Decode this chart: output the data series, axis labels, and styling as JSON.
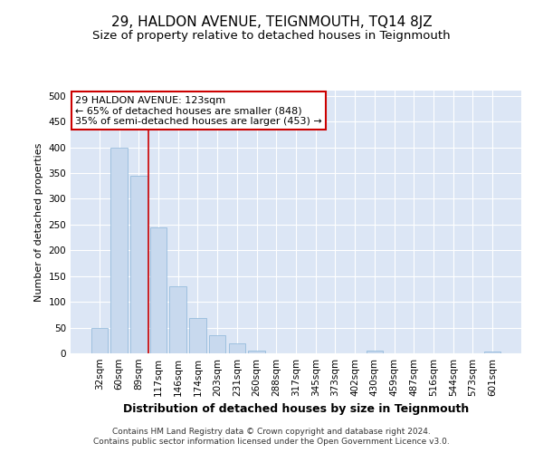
{
  "title": "29, HALDON AVENUE, TEIGNMOUTH, TQ14 8JZ",
  "subtitle": "Size of property relative to detached houses in Teignmouth",
  "xlabel": "Distribution of detached houses by size in Teignmouth",
  "ylabel": "Number of detached properties",
  "categories": [
    "32sqm",
    "60sqm",
    "89sqm",
    "117sqm",
    "146sqm",
    "174sqm",
    "203sqm",
    "231sqm",
    "260sqm",
    "288sqm",
    "317sqm",
    "345sqm",
    "373sqm",
    "402sqm",
    "430sqm",
    "459sqm",
    "487sqm",
    "516sqm",
    "544sqm",
    "573sqm",
    "601sqm"
  ],
  "values": [
    50,
    400,
    345,
    245,
    130,
    68,
    35,
    20,
    6,
    0,
    0,
    0,
    0,
    0,
    5,
    0,
    0,
    0,
    0,
    0,
    3
  ],
  "bar_color": "#c8d9ee",
  "bar_edge_color": "#8ab4d8",
  "vline_color": "#cc0000",
  "vline_x_index": 3,
  "annotation_text": "29 HALDON AVENUE: 123sqm\n← 65% of detached houses are smaller (848)\n35% of semi-detached houses are larger (453) →",
  "annotation_box_facecolor": "white",
  "annotation_box_edgecolor": "#cc0000",
  "ylim": [
    0,
    510
  ],
  "yticks": [
    0,
    50,
    100,
    150,
    200,
    250,
    300,
    350,
    400,
    450,
    500
  ],
  "plot_bg_color": "#dce6f5",
  "grid_color": "white",
  "footer_line1": "Contains HM Land Registry data © Crown copyright and database right 2024.",
  "footer_line2": "Contains public sector information licensed under the Open Government Licence v3.0.",
  "title_fontsize": 11,
  "subtitle_fontsize": 9.5,
  "xlabel_fontsize": 9,
  "ylabel_fontsize": 8,
  "annotation_fontsize": 8,
  "tick_fontsize": 7.5,
  "footer_fontsize": 6.5
}
